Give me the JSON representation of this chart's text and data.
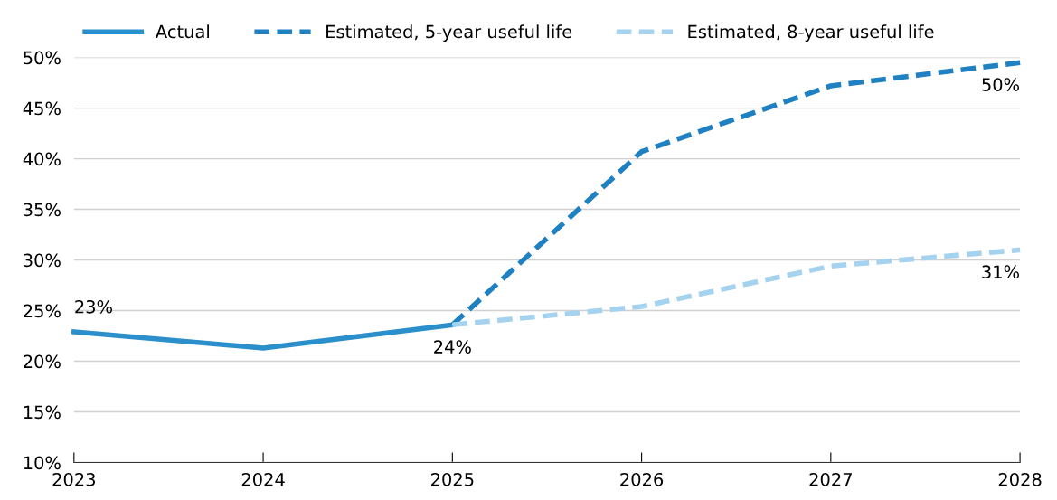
{
  "chart_data": {
    "type": "line",
    "x": [
      2023,
      2024,
      2025,
      2026,
      2027,
      2028
    ],
    "series": [
      {
        "name": "Actual",
        "color": "#2a8fcb",
        "line_style": "solid",
        "values": [
          22.9,
          21.3,
          23.6,
          null,
          null,
          null
        ],
        "value_labels": [
          "23%",
          null,
          "24%",
          null,
          null,
          null
        ]
      },
      {
        "name": "Estimated, 5-year useful life",
        "color": "#1f80c2",
        "line_style": "dashed",
        "values": [
          null,
          null,
          23.6,
          40.7,
          47.2,
          49.5
        ],
        "value_labels": [
          null,
          null,
          null,
          null,
          null,
          "50%"
        ]
      },
      {
        "name": "Estimated, 8-year useful life",
        "color": "#a5d3ef",
        "line_style": "dashed",
        "values": [
          null,
          null,
          23.6,
          25.4,
          29.4,
          31.0
        ],
        "value_labels": [
          null,
          null,
          null,
          null,
          null,
          "31%"
        ]
      }
    ],
    "xlim": [
      2023,
      2028
    ],
    "xticks": [
      2023,
      2024,
      2025,
      2026,
      2027,
      2028
    ],
    "ylim": [
      10,
      50
    ],
    "yticks": [
      {
        "value": 10,
        "label": "10%"
      },
      {
        "value": 15,
        "label": "15%"
      },
      {
        "value": 20,
        "label": "20%"
      },
      {
        "value": 25,
        "label": "25%"
      },
      {
        "value": 30,
        "label": "30%"
      },
      {
        "value": 35,
        "label": "35%"
      },
      {
        "value": 40,
        "label": "40%"
      },
      {
        "value": 45,
        "label": "45%"
      },
      {
        "value": 50,
        "label": "50%"
      }
    ],
    "grid": "y",
    "legend": "top left",
    "marker": "none"
  }
}
